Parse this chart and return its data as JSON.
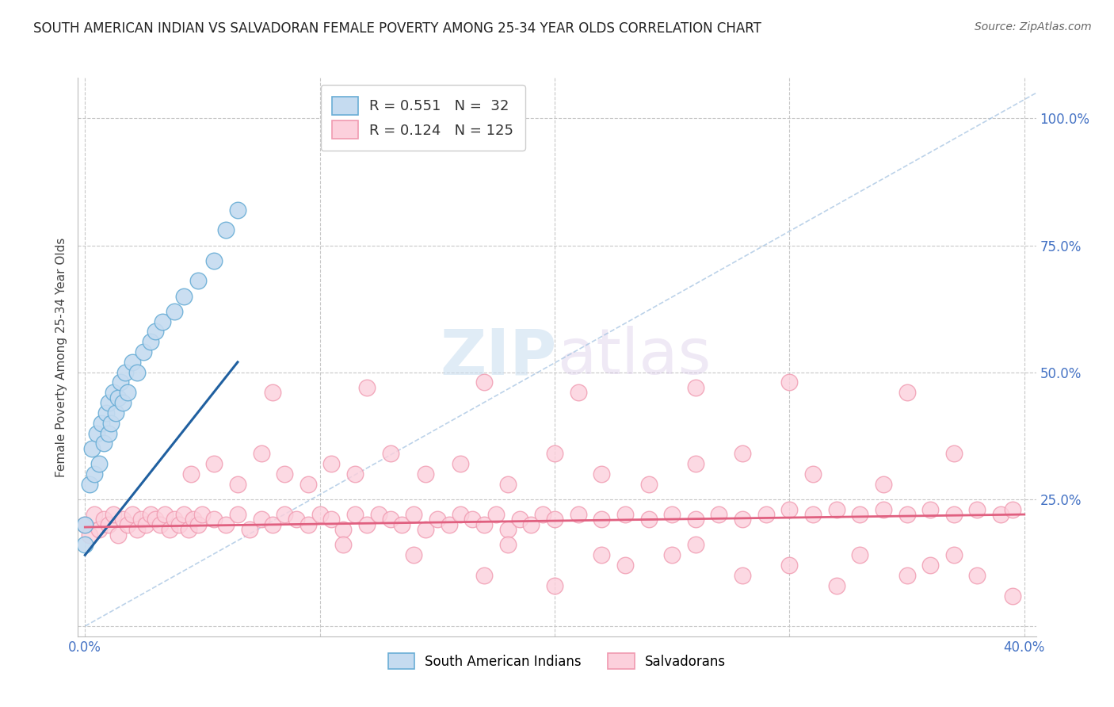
{
  "title": "SOUTH AMERICAN INDIAN VS SALVADORAN FEMALE POVERTY AMONG 25-34 YEAR OLDS CORRELATION CHART",
  "source": "Source: ZipAtlas.com",
  "ylabel": "Female Poverty Among 25-34 Year Olds",
  "xlim": [
    -0.003,
    0.405
  ],
  "ylim": [
    -0.02,
    1.08
  ],
  "xticks": [
    0.0,
    0.1,
    0.2,
    0.3,
    0.4
  ],
  "xticklabels": [
    "0.0%",
    "",
    "",
    "",
    "40.0%"
  ],
  "yticks": [
    0.0,
    0.25,
    0.5,
    0.75,
    1.0
  ],
  "yticklabels": [
    "",
    "25.0%",
    "50.0%",
    "75.0%",
    "100.0%"
  ],
  "R_blue": 0.551,
  "N_blue": 32,
  "R_pink": 0.124,
  "N_pink": 125,
  "blue_color": "#c5dbf0",
  "blue_edge": "#6aaed6",
  "pink_color": "#fcd0dc",
  "pink_edge": "#f09ab0",
  "blue_line_color": "#2060a0",
  "pink_line_color": "#e06080",
  "ref_line_color": "#a0c0e0",
  "legend_label_blue": "South American Indians",
  "legend_label_pink": "Salvadorans",
  "watermark_zip": "ZIP",
  "watermark_atlas": "atlas",
  "background_color": "#ffffff",
  "grid_color": "#c8c8c8",
  "title_color": "#222222",
  "tick_color": "#4472c4",
  "blue_scatter_x": [
    0.0,
    0.0,
    0.002,
    0.003,
    0.004,
    0.005,
    0.006,
    0.007,
    0.008,
    0.009,
    0.01,
    0.01,
    0.011,
    0.012,
    0.013,
    0.014,
    0.015,
    0.016,
    0.017,
    0.018,
    0.02,
    0.022,
    0.025,
    0.028,
    0.03,
    0.033,
    0.038,
    0.042,
    0.048,
    0.055,
    0.06,
    0.065
  ],
  "blue_scatter_y": [
    0.16,
    0.2,
    0.28,
    0.35,
    0.3,
    0.38,
    0.32,
    0.4,
    0.36,
    0.42,
    0.38,
    0.44,
    0.4,
    0.46,
    0.42,
    0.45,
    0.48,
    0.44,
    0.5,
    0.46,
    0.52,
    0.5,
    0.54,
    0.56,
    0.58,
    0.6,
    0.62,
    0.65,
    0.68,
    0.72,
    0.78,
    0.82
  ],
  "pink_scatter_x": [
    0.0,
    0.002,
    0.004,
    0.006,
    0.008,
    0.01,
    0.012,
    0.014,
    0.016,
    0.018,
    0.02,
    0.022,
    0.024,
    0.026,
    0.028,
    0.03,
    0.032,
    0.034,
    0.036,
    0.038,
    0.04,
    0.042,
    0.044,
    0.046,
    0.048,
    0.05,
    0.055,
    0.06,
    0.065,
    0.07,
    0.075,
    0.08,
    0.085,
    0.09,
    0.095,
    0.1,
    0.105,
    0.11,
    0.115,
    0.12,
    0.125,
    0.13,
    0.135,
    0.14,
    0.145,
    0.15,
    0.155,
    0.16,
    0.165,
    0.17,
    0.175,
    0.18,
    0.185,
    0.19,
    0.195,
    0.2,
    0.21,
    0.22,
    0.23,
    0.24,
    0.25,
    0.26,
    0.27,
    0.28,
    0.29,
    0.3,
    0.31,
    0.32,
    0.33,
    0.34,
    0.35,
    0.36,
    0.37,
    0.38,
    0.39,
    0.395,
    0.045,
    0.055,
    0.065,
    0.075,
    0.085,
    0.095,
    0.105,
    0.115,
    0.13,
    0.145,
    0.16,
    0.18,
    0.2,
    0.22,
    0.24,
    0.26,
    0.28,
    0.31,
    0.34,
    0.37,
    0.08,
    0.12,
    0.17,
    0.21,
    0.26,
    0.3,
    0.35,
    0.17,
    0.2,
    0.23,
    0.28,
    0.32,
    0.36,
    0.38,
    0.395,
    0.25,
    0.3,
    0.35,
    0.37,
    0.11,
    0.14,
    0.18,
    0.22,
    0.26,
    0.33
  ],
  "pink_scatter_y": [
    0.2,
    0.18,
    0.22,
    0.19,
    0.21,
    0.2,
    0.22,
    0.18,
    0.21,
    0.2,
    0.22,
    0.19,
    0.21,
    0.2,
    0.22,
    0.21,
    0.2,
    0.22,
    0.19,
    0.21,
    0.2,
    0.22,
    0.19,
    0.21,
    0.2,
    0.22,
    0.21,
    0.2,
    0.22,
    0.19,
    0.21,
    0.2,
    0.22,
    0.21,
    0.2,
    0.22,
    0.21,
    0.19,
    0.22,
    0.2,
    0.22,
    0.21,
    0.2,
    0.22,
    0.19,
    0.21,
    0.2,
    0.22,
    0.21,
    0.2,
    0.22,
    0.19,
    0.21,
    0.2,
    0.22,
    0.21,
    0.22,
    0.21,
    0.22,
    0.21,
    0.22,
    0.21,
    0.22,
    0.21,
    0.22,
    0.23,
    0.22,
    0.23,
    0.22,
    0.23,
    0.22,
    0.23,
    0.22,
    0.23,
    0.22,
    0.23,
    0.3,
    0.32,
    0.28,
    0.34,
    0.3,
    0.28,
    0.32,
    0.3,
    0.34,
    0.3,
    0.32,
    0.28,
    0.34,
    0.3,
    0.28,
    0.32,
    0.34,
    0.3,
    0.28,
    0.34,
    0.46,
    0.47,
    0.48,
    0.46,
    0.47,
    0.48,
    0.46,
    0.1,
    0.08,
    0.12,
    0.1,
    0.08,
    0.12,
    0.1,
    0.06,
    0.14,
    0.12,
    0.1,
    0.14,
    0.16,
    0.14,
    0.16,
    0.14,
    0.16,
    0.14
  ]
}
